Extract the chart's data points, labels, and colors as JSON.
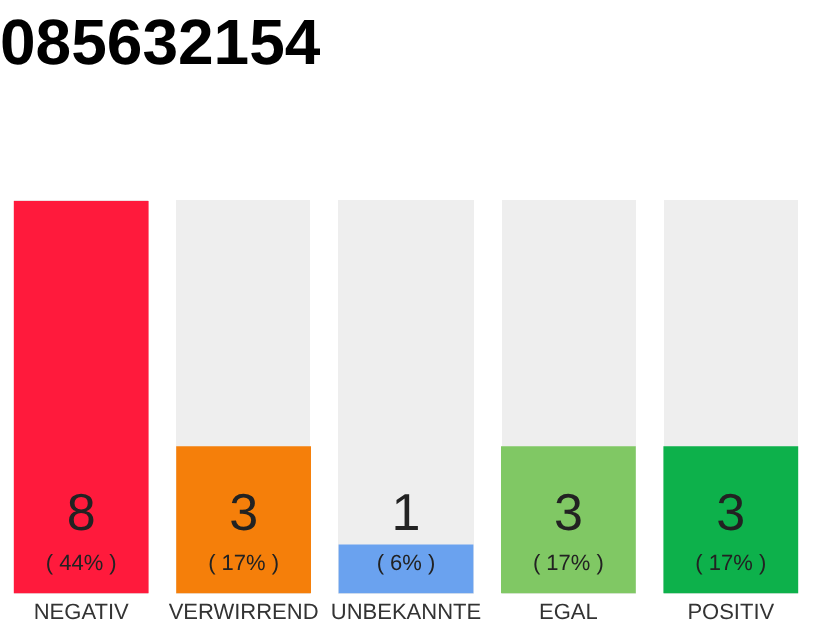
{
  "chart_data": {
    "type": "bar",
    "title": "085632154",
    "categories": [
      "NEGATIV",
      "VERWIRREND",
      "UNBEKANNTE",
      "EGAL",
      "POSITIV"
    ],
    "values": [
      8,
      3,
      1,
      3,
      3
    ],
    "colors": [
      "#ff1a3c",
      "#f57f0a",
      "#6aa2ef",
      "#80c864",
      "#0db14b"
    ],
    "value_labels": [
      "8\n( 44% )",
      "3\n( 17% )",
      "1\n( 6% )",
      "3\n( 17% )",
      "3\n( 17% )"
    ],
    "ylim": [
      0,
      8
    ],
    "tick_labels": "x",
    "grid": false,
    "legend": false
  }
}
